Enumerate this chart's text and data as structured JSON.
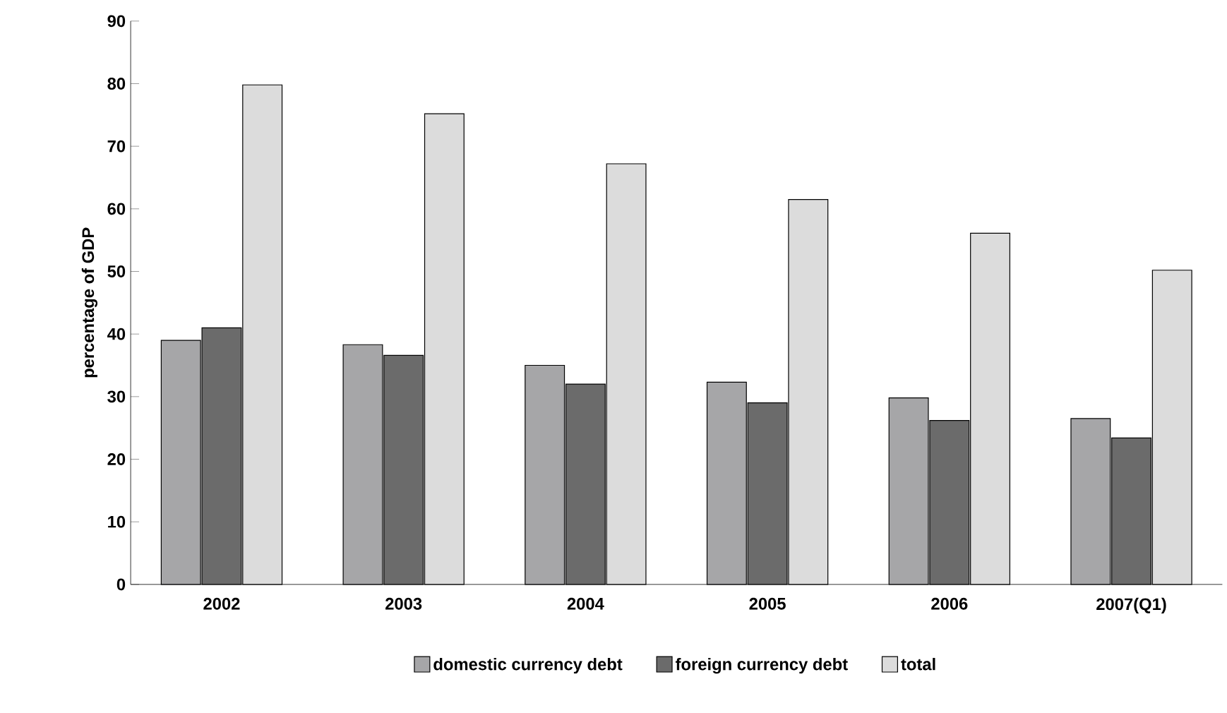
{
  "chart_data": {
    "type": "bar",
    "ylabel": "percentage of GDP",
    "categories": [
      "2002",
      "2003",
      "2004",
      "2005",
      "2006",
      "2007(Q1)"
    ],
    "series": [
      {
        "name": "domestic currency debt",
        "color": "#a6a6a8",
        "values": [
          39,
          38.3,
          35,
          32.3,
          29.8,
          26.5
        ]
      },
      {
        "name": "foreign currency debt",
        "color": "#6b6b6b",
        "values": [
          41,
          36.6,
          32,
          29,
          26.2,
          23.4
        ]
      },
      {
        "name": "total",
        "color": "#dcdcdc",
        "values": [
          79.8,
          75.2,
          67.2,
          61.5,
          56.1,
          50.2
        ]
      }
    ],
    "ylim": [
      0,
      90
    ],
    "yticks": [
      0,
      10,
      20,
      30,
      40,
      50,
      60,
      70,
      80,
      90
    ],
    "grid": false,
    "legend": "bottom"
  }
}
